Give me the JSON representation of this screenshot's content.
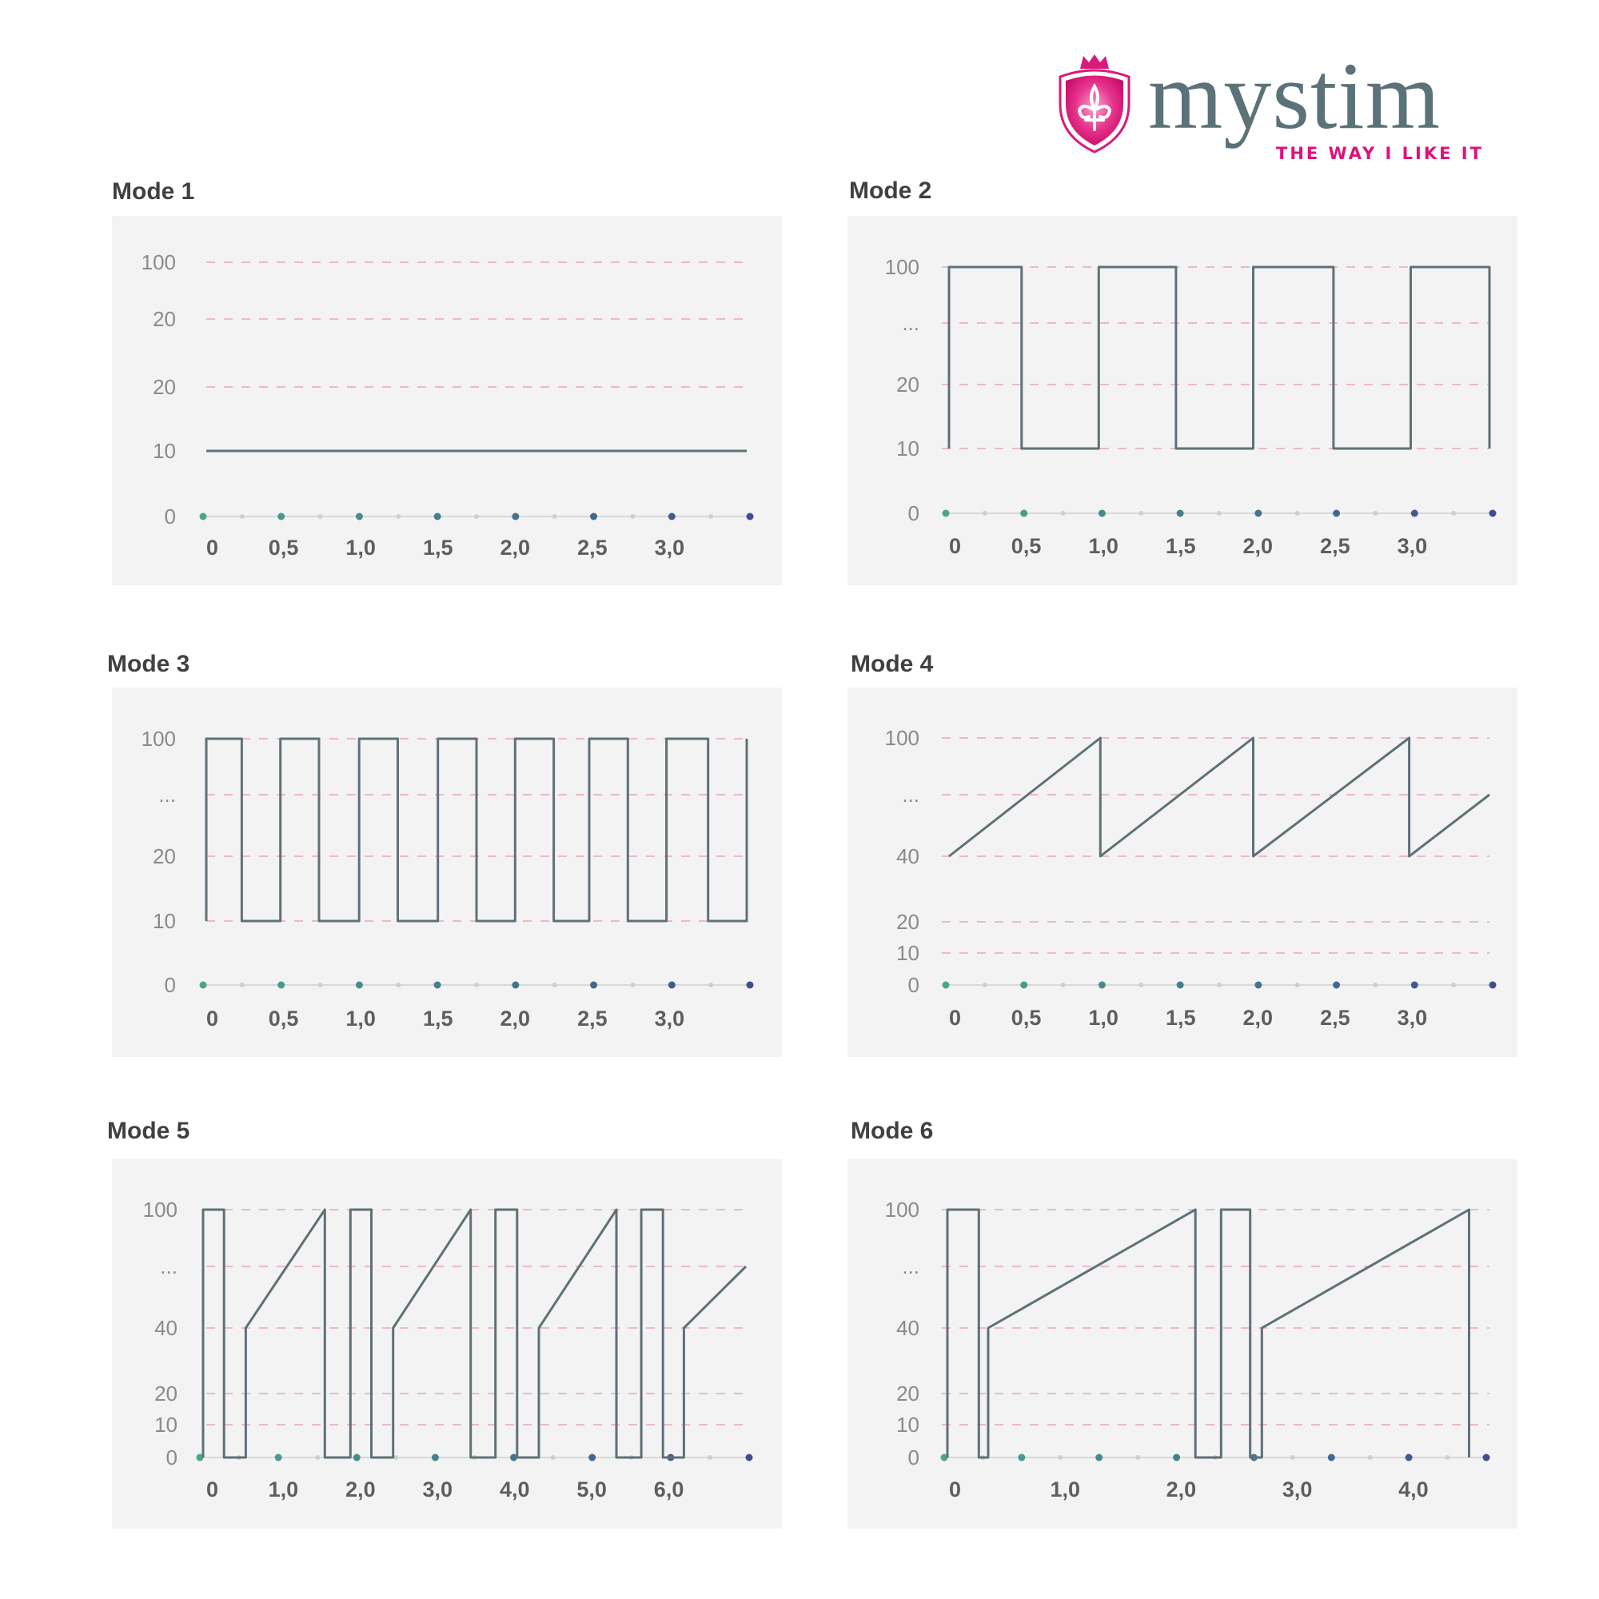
{
  "logo": {
    "wordmark": "mystim",
    "tagline": "THE WAY I LIKE IT",
    "icon": "fleur-de-lis-shield-icon",
    "colors": {
      "brand_pink": "#e0107b",
      "brand_gray": "#5c7279"
    }
  },
  "colors": {
    "line": "#5f7177",
    "gridline": "#e8a7bc",
    "axis": "#d8d8d8",
    "panel_bg": "#f3f3f3",
    "dot_start": "#4aa58e",
    "dot_end": "#3d4f8f"
  },
  "chart_data": [
    {
      "type": "line",
      "title": "Mode 1",
      "ytick_labels": [
        "100",
        "20",
        "20",
        "10",
        "0"
      ],
      "xtick_labels": [
        "0",
        "0,5",
        "1,0",
        "1,5",
        "2,0",
        "2,5",
        "3,0"
      ],
      "xtick_values": [
        0,
        0.5,
        1.0,
        1.5,
        2.0,
        2.5,
        3.0
      ],
      "xlim": [
        0,
        3.5
      ],
      "grid": "dashed horizontal",
      "series": [
        {
          "x": [
            0,
            3.5
          ],
          "y": [
            "10",
            "10"
          ]
        }
      ]
    },
    {
      "type": "line",
      "title": "Mode 2",
      "ytick_labels": [
        "100",
        "...",
        "20",
        "10",
        "0"
      ],
      "xtick_labels": [
        "0",
        "0,5",
        "1,0",
        "1,5",
        "2,0",
        "2,5",
        "3,0"
      ],
      "xtick_values": [
        0,
        0.5,
        1.0,
        1.5,
        2.0,
        2.5,
        3.0
      ],
      "xlim": [
        0,
        3.5
      ],
      "grid": "dashed horizontal",
      "series": [
        {
          "x": [
            0,
            0,
            0.47,
            0.47,
            0.97,
            0.97,
            1.47,
            1.47,
            1.97,
            1.97,
            2.49,
            2.49,
            2.99,
            2.99,
            3.5,
            3.5
          ],
          "y": [
            "10",
            "100",
            "100",
            "10",
            "10",
            "100",
            "100",
            "10",
            "10",
            "100",
            "100",
            "10",
            "10",
            "100",
            "100",
            "10"
          ]
        }
      ]
    },
    {
      "type": "line",
      "title": "Mode 3",
      "ytick_labels": [
        "100",
        "...",
        "20",
        "10",
        "0"
      ],
      "xtick_labels": [
        "0",
        "0,5",
        "1,0",
        "1,5",
        "2,0",
        "2,5",
        "3,0"
      ],
      "xtick_values": [
        0,
        0.5,
        1.0,
        1.5,
        2.0,
        2.5,
        3.0
      ],
      "xlim": [
        0,
        3.5
      ],
      "grid": "dashed horizontal",
      "series": [
        {
          "x": [
            0,
            0,
            0.23,
            0.23,
            0.48,
            0.48,
            0.73,
            0.73,
            0.99,
            0.99,
            1.24,
            1.24,
            1.5,
            1.5,
            1.75,
            1.75,
            2.0,
            2.0,
            2.25,
            2.25,
            2.48,
            2.48,
            2.73,
            2.73,
            2.98,
            2.98,
            3.25,
            3.25,
            3.5,
            3.5
          ],
          "y": [
            "10",
            "100",
            "100",
            "10",
            "10",
            "100",
            "100",
            "10",
            "10",
            "100",
            "100",
            "10",
            "10",
            "100",
            "100",
            "10",
            "10",
            "100",
            "100",
            "10",
            "10",
            "100",
            "100",
            "10",
            "10",
            "100",
            "100",
            "10",
            "10",
            "100"
          ]
        }
      ]
    },
    {
      "type": "line",
      "title": "Mode 4",
      "ytick_labels": [
        "100",
        "...",
        "40",
        "20",
        "10",
        "0"
      ],
      "xtick_labels": [
        "0",
        "0,5",
        "1,0",
        "1,5",
        "2,0",
        "2,5",
        "3,0"
      ],
      "xtick_values": [
        0,
        0.5,
        1.0,
        1.5,
        2.0,
        2.5,
        3.0
      ],
      "xlim": [
        0,
        3.5
      ],
      "grid": "dashed horizontal",
      "series": [
        {
          "x": [
            0,
            0.98,
            0.98,
            1.97,
            1.97,
            2.98,
            2.98,
            3.5
          ],
          "y": [
            "40",
            "100",
            "40",
            "100",
            "40",
            "100",
            "40",
            "..."
          ]
        }
      ]
    },
    {
      "type": "line",
      "title": "Mode 5",
      "ytick_labels": [
        "100",
        "...",
        "40",
        "20",
        "10",
        "0"
      ],
      "xtick_labels": [
        "0",
        "1,0",
        "2,0",
        "3,0",
        "4,0",
        "5,0",
        "6,0"
      ],
      "xtick_values": [
        0,
        1.0,
        2.0,
        3.0,
        4.0,
        5.0,
        6.0
      ],
      "xlim": [
        0,
        7.0
      ],
      "grid": "dashed horizontal",
      "series": [
        {
          "x": [
            0,
            0,
            0.27,
            0.27,
            0.55,
            0.55,
            1.57,
            1.57,
            1.9,
            1.9,
            2.17,
            2.17,
            2.45,
            2.45,
            3.45,
            3.45,
            3.77,
            3.77,
            4.05,
            4.05,
            4.33,
            4.33,
            5.33,
            5.33,
            5.65,
            5.65,
            5.93,
            5.93,
            6.2,
            6.2,
            7.0
          ],
          "y": [
            "0",
            "100",
            "100",
            "0",
            "0",
            "40",
            "100",
            "0",
            "0",
            "100",
            "100",
            "0",
            "0",
            "40",
            "100",
            "0",
            "0",
            "100",
            "100",
            "0",
            "0",
            "40",
            "100",
            "0",
            "0",
            "100",
            "100",
            "0",
            "0",
            "40",
            "..."
          ]
        }
      ]
    },
    {
      "type": "line",
      "title": "Mode 6",
      "ytick_labels": [
        "100",
        "...",
        "40",
        "20",
        "10",
        "0"
      ],
      "xtick_labels": [
        "0",
        "1,0",
        "2,0",
        "3,0",
        "4,0"
      ],
      "xtick_values": [
        0,
        1.0,
        2.0,
        3.0,
        4.0
      ],
      "xlim": [
        0,
        4.6
      ],
      "grid": "dashed horizontal",
      "series": [
        {
          "x": [
            0,
            0,
            0.27,
            0.27,
            0.35,
            0.35,
            2.13,
            2.13,
            2.35,
            2.35,
            2.6,
            2.6,
            2.7,
            2.7,
            4.48,
            4.48
          ],
          "y": [
            "0",
            "100",
            "100",
            "0",
            "0",
            "40",
            "100",
            "0",
            "0",
            "100",
            "100",
            "0",
            "0",
            "40",
            "100",
            "0"
          ]
        }
      ]
    }
  ]
}
